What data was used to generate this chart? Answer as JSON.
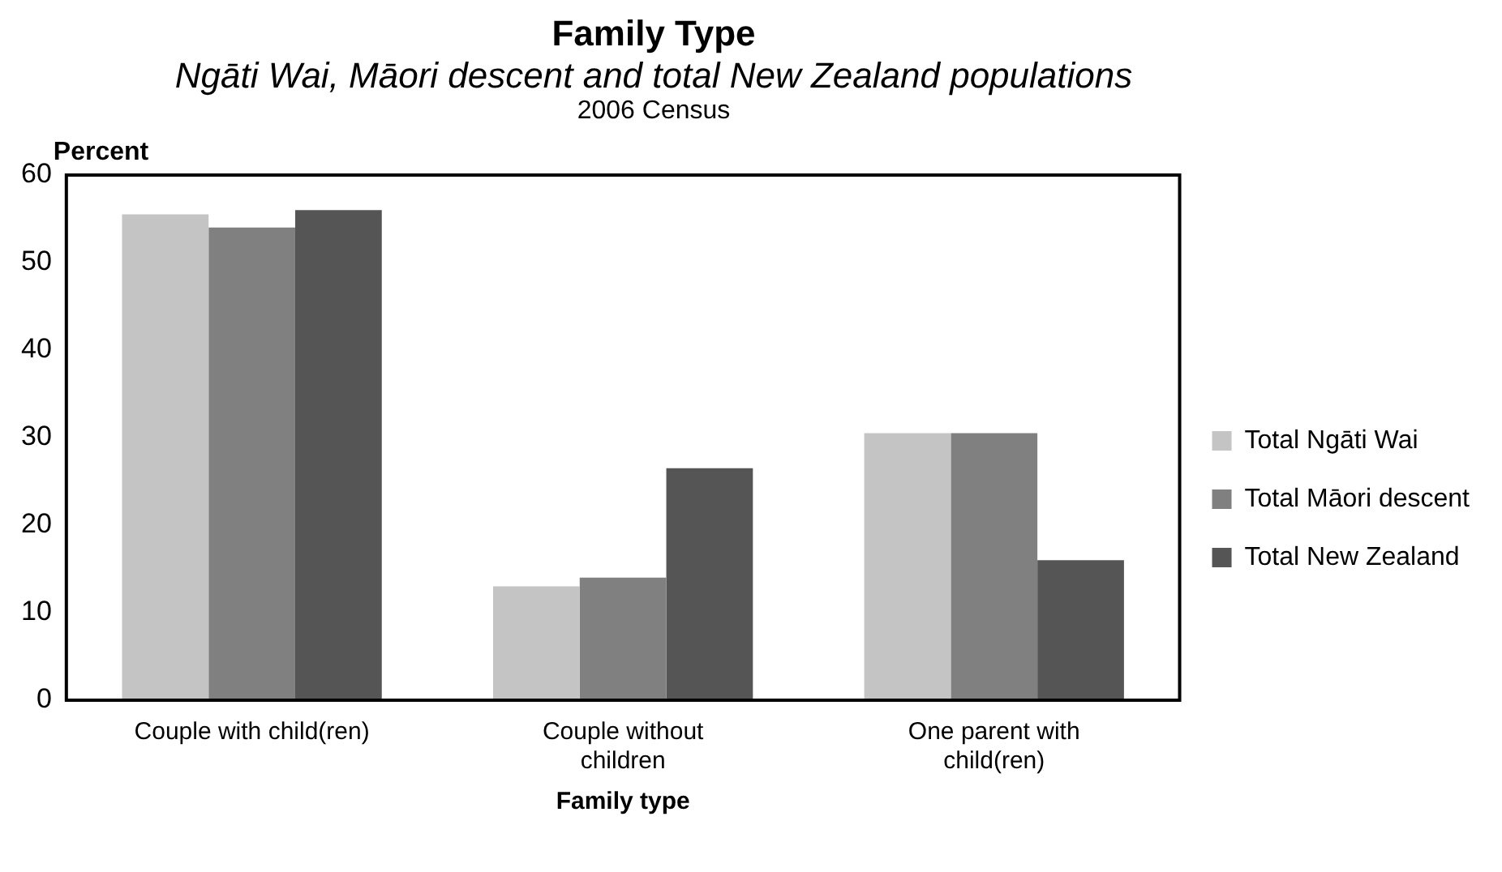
{
  "chart_data": {
    "type": "bar",
    "title": "Family Type",
    "subtitle": "Ngāti Wai, Māori descent and total New Zealand populations",
    "annotations": [
      "2006 Census"
    ],
    "ylabel": "Percent",
    "xlabel": "Family type",
    "categories": [
      "Couple with child(ren)",
      "Couple without children",
      "One parent with child(ren)"
    ],
    "series": [
      {
        "name": "Total Ngāti Wai",
        "color": "#c4c4c4",
        "values": [
          55.5,
          13,
          30.5
        ]
      },
      {
        "name": "Total Māori descent",
        "color": "#808080",
        "values": [
          54,
          14,
          30.5
        ]
      },
      {
        "name": "Total New Zealand",
        "color": "#555555",
        "values": [
          56,
          26.5,
          16
        ]
      }
    ],
    "ylim": [
      0,
      60
    ],
    "yticks": [
      0,
      10,
      20,
      30,
      40,
      50,
      60
    ],
    "legend": "right"
  }
}
